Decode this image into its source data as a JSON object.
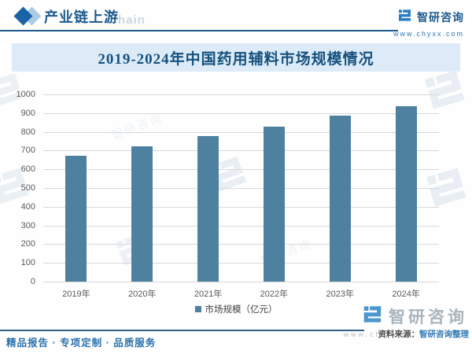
{
  "header": {
    "title": "产业链上游",
    "brand_name": "智研咨询",
    "brand_site": "www.chyxx.com"
  },
  "chart_data": {
    "type": "bar",
    "title": "2019-2024年中国药用辅料市场规模情况",
    "categories": [
      "2019年",
      "2020年",
      "2021年",
      "2022年",
      "2023年",
      "2024年"
    ],
    "values": [
      672,
      723,
      777,
      829,
      885,
      937
    ],
    "series_name": "市场规模（亿元）",
    "xlabel": "",
    "ylabel": "",
    "ylim": [
      0,
      1000
    ],
    "ytick_step": 100,
    "grid": "horizontal",
    "legend_position": "bottom",
    "bar_color": "#4e80a0"
  },
  "legend": {
    "label": "市场规模（亿元）"
  },
  "footer": {
    "tagline": "精品报告 · 专项定制 · 品质服务",
    "source_label": "资料来源：",
    "source_value": "智研咨询整理",
    "brand_name": "智研咨询",
    "brand_site": "www.chyxx.com"
  },
  "watermark": {
    "text": "智研咨询",
    "header_fragment": "hain"
  },
  "colors": {
    "accent_blue": "#1c5a8d",
    "bar": "#4e80a0",
    "title_band": "#dcebf7",
    "link_blue": "#2f78b5"
  }
}
